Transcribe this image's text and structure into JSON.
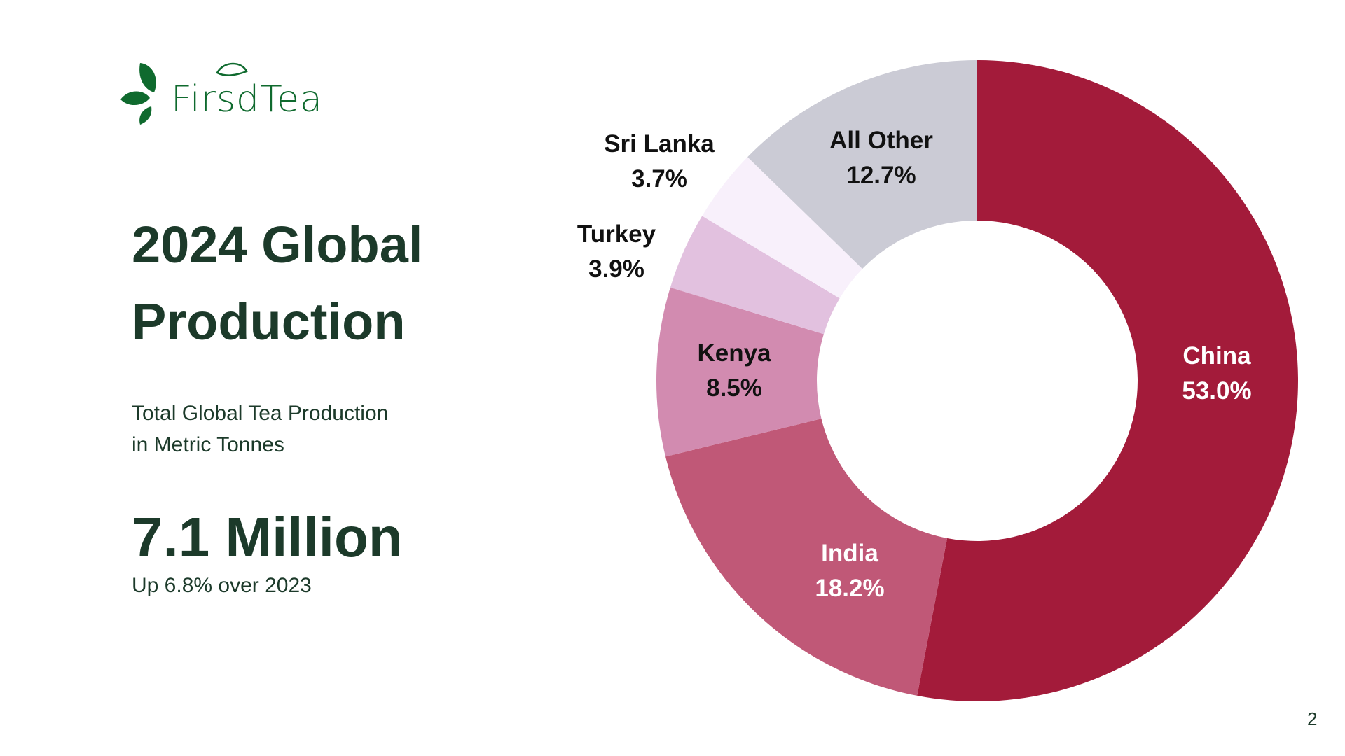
{
  "logo": {
    "text": "FirsdTea"
  },
  "title_line1": "2024 Global",
  "title_line2": "Production",
  "subtitle_line1": "Total Global Tea Production",
  "subtitle_line2": "in Metric Tonnes",
  "total": "7.1 Million",
  "change": "Up 6.8% over 2023",
  "page_number": "2",
  "chart_data": {
    "type": "pie",
    "variant": "donut",
    "title": "2024 Global Production",
    "unit": "%",
    "start": "top",
    "direction": "clockwise",
    "slices": [
      {
        "label": "China",
        "value": 53.0,
        "value_label": "53.0%",
        "color": "#a31b3a",
        "text_color": "#ffffff"
      },
      {
        "label": "India",
        "value": 18.2,
        "value_label": "18.2%",
        "color": "#c05877",
        "text_color": "#ffffff"
      },
      {
        "label": "Kenya",
        "value": 8.5,
        "value_label": "8.5%",
        "color": "#d28bb0",
        "text_color": "#111111"
      },
      {
        "label": "Turkey",
        "value": 3.9,
        "value_label": "3.9%",
        "color": "#e2c1df",
        "text_color": "#111111"
      },
      {
        "label": "Sri Lanka",
        "value": 3.7,
        "value_label": "3.7%",
        "color": "#f8f0fb",
        "text_color": "#111111"
      },
      {
        "label": "All Other",
        "value": 12.7,
        "value_label": "12.7%",
        "color": "#cbcbd5",
        "text_color": "#111111"
      }
    ]
  }
}
